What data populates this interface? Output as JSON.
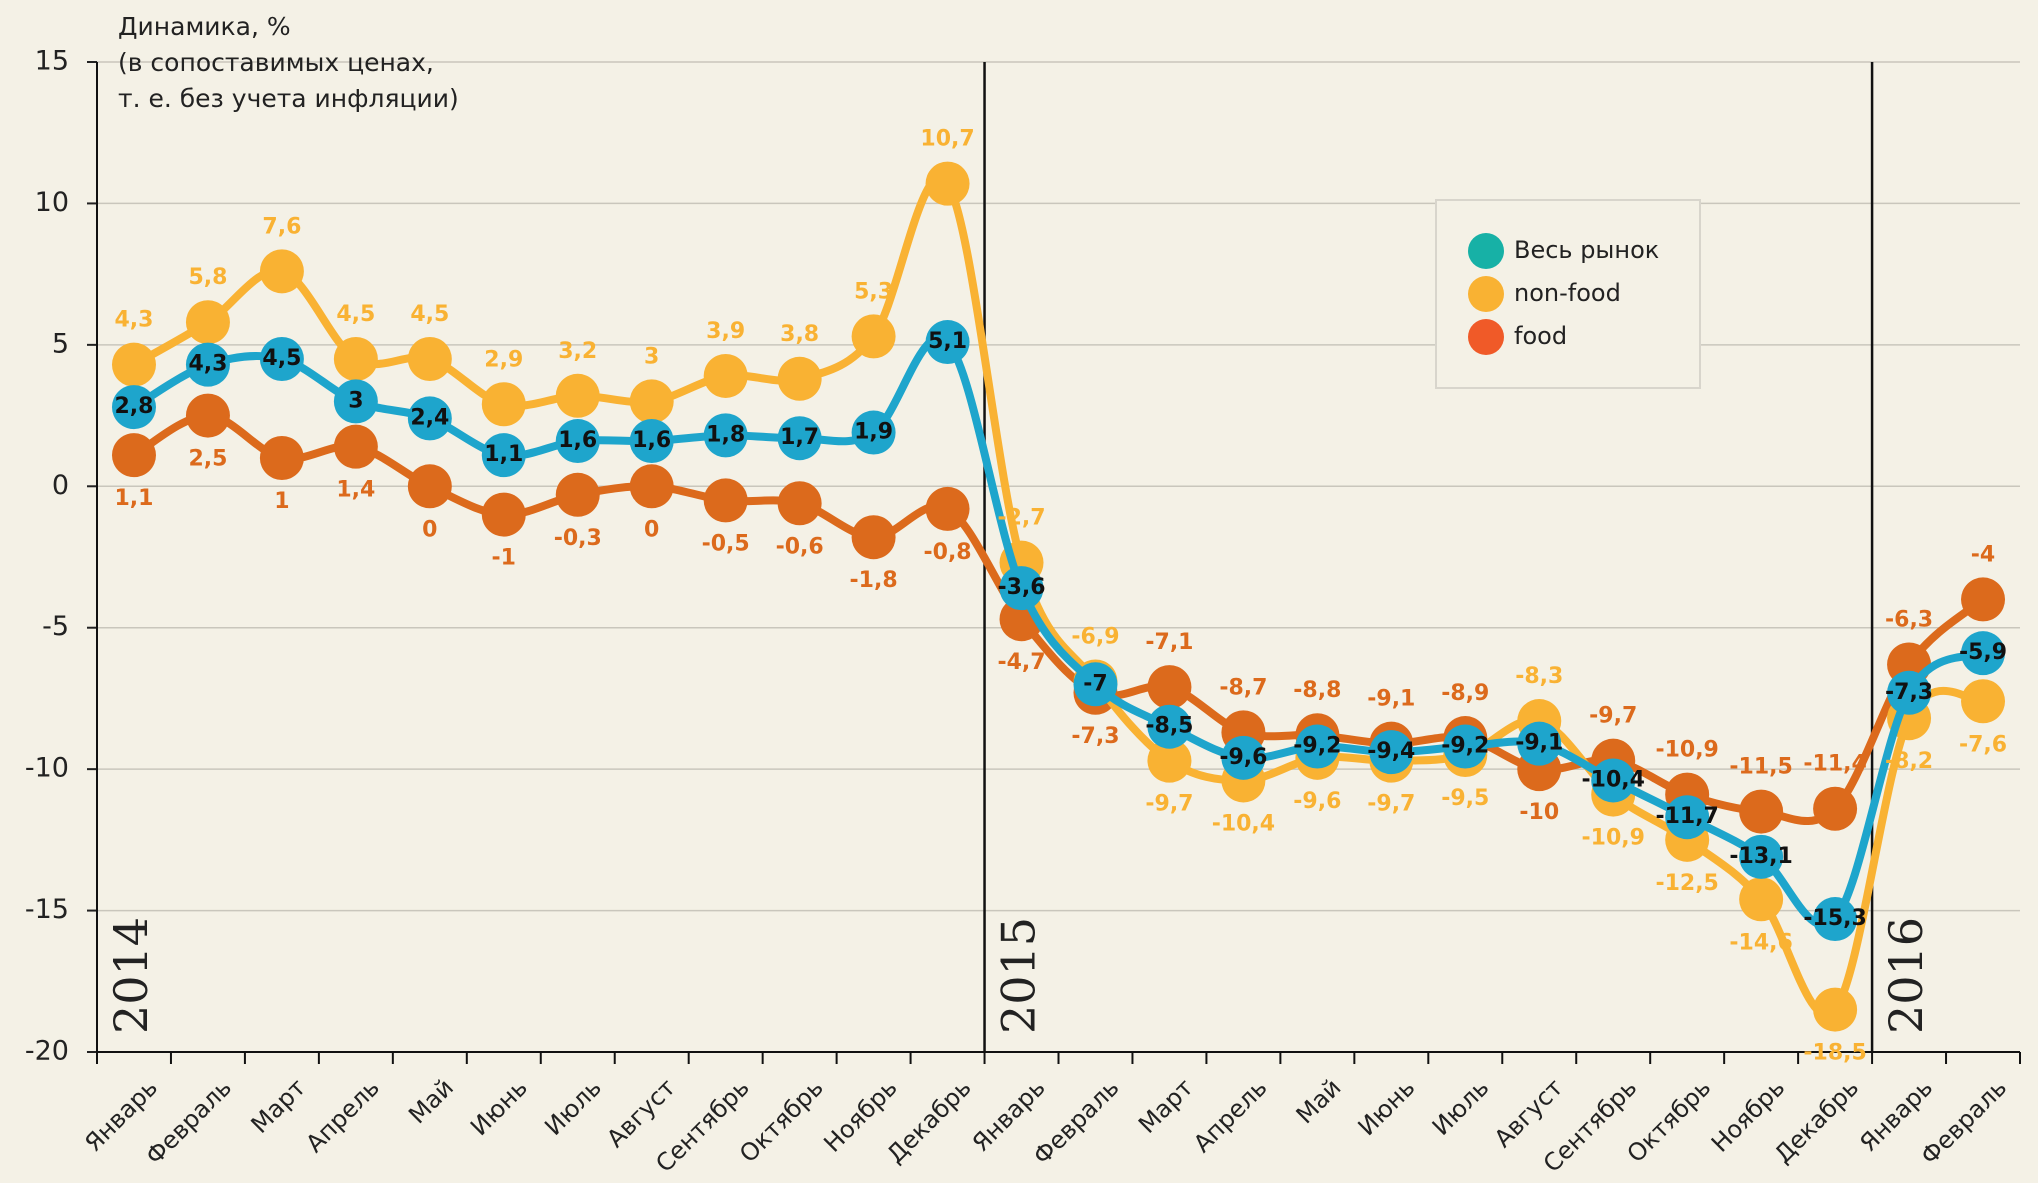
{
  "chart_data": {
    "type": "line",
    "y_label": [
      "Динамика, %",
      "(в сопоставимых ценах,",
      "т. е. без учета инфляции)"
    ],
    "years": [
      "2014",
      "2015",
      "2016"
    ],
    "categories": [
      "Январь",
      "Февраль",
      "Март",
      "Апрель",
      "Май",
      "Июнь",
      "Июль",
      "Август",
      "Сентябрь",
      "Октябрь",
      "Ноябрь",
      "Декабрь",
      "Январь",
      "Февраль",
      "Март",
      "Апрель",
      "Май",
      "Июнь",
      "Июль",
      "Август",
      "Сентябрь",
      "Октябрь",
      "Ноябрь",
      "Декабрь",
      "Январь",
      "Февраль"
    ],
    "ylim": [
      -20,
      15
    ],
    "yticks": [
      -20,
      -15,
      -10,
      -5,
      0,
      5,
      10,
      15
    ],
    "grid": true,
    "legend": "upper right",
    "series": [
      {
        "name": "Весь рынок",
        "color": "#1ea5cc",
        "legend_color": "#17b1a6",
        "values": [
          2.8,
          4.3,
          4.5,
          3,
          2.4,
          1.1,
          1.6,
          1.6,
          1.8,
          1.7,
          1.9,
          5.1,
          -3.6,
          -7,
          -8.5,
          -9.6,
          -9.2,
          -9.4,
          -9.2,
          -9.1,
          -10.4,
          -11.7,
          -13.1,
          -15.3,
          -7.3,
          -5.9
        ],
        "value_labels": [
          "2,8",
          "4,3",
          "4,5",
          "3",
          "2,4",
          "1,1",
          "1,6",
          "1,6",
          "1,8",
          "1,7",
          "1,9",
          "5,1",
          "-3,6",
          "-7",
          "-8,5",
          "-9,6",
          "-9,2",
          "-9,4",
          "-9,2",
          "-9,1",
          "-10,4",
          "-11,7",
          "-13,1",
          "-15,3",
          "-7,3",
          "-5,9"
        ]
      },
      {
        "name": "non-food",
        "color": "#f9b233",
        "legend_color": "#f9b233",
        "values": [
          4.3,
          5.8,
          7.6,
          4.5,
          4.5,
          2.9,
          3.2,
          3,
          3.9,
          3.8,
          5.3,
          10.7,
          -2.7,
          -6.9,
          -9.7,
          -10.4,
          -9.6,
          -9.7,
          -9.5,
          -8.3,
          -10.9,
          -12.5,
          -14.6,
          -18.5,
          -8.2,
          -7.6
        ],
        "value_labels": [
          "4,3",
          "5,8",
          "7,6",
          "4,5",
          "4,5",
          "2,9",
          "3,2",
          "3",
          "3,9",
          "3,8",
          "5,3",
          "10,7",
          "-2,7",
          "-6,9",
          "-9,7",
          "-10,4",
          "-9,6",
          "-9,7",
          "-9,5",
          "-8,3",
          "-10,9",
          "-12,5",
          "-14,6",
          "-18,5",
          "-8,2",
          "-7,6"
        ]
      },
      {
        "name": "food",
        "color": "#dc6a1c",
        "legend_color": "#f05a28",
        "values": [
          1.1,
          2.5,
          1,
          1.4,
          0,
          -1,
          -0.3,
          0,
          -0.5,
          -0.6,
          -1.8,
          -0.8,
          -4.7,
          -7.3,
          -7.1,
          -8.7,
          -8.8,
          -9.1,
          -8.9,
          -10,
          -9.7,
          -10.9,
          -11.5,
          -11.4,
          -6.3,
          -4
        ],
        "value_labels": [
          "1,1",
          "2,5",
          "1",
          "1,4",
          "0",
          "-1",
          "-0,3",
          "0",
          "-0,5",
          "-0,6",
          "-1,8",
          "-0,8",
          "-4,7",
          "-7,3",
          "-7,1",
          "-8,7",
          "-8,8",
          "-9,1",
          "-8,9",
          "-10",
          "-9,7",
          "-10,9",
          "-11,5",
          "-11,4",
          "-6,3",
          "-4"
        ]
      }
    ]
  }
}
